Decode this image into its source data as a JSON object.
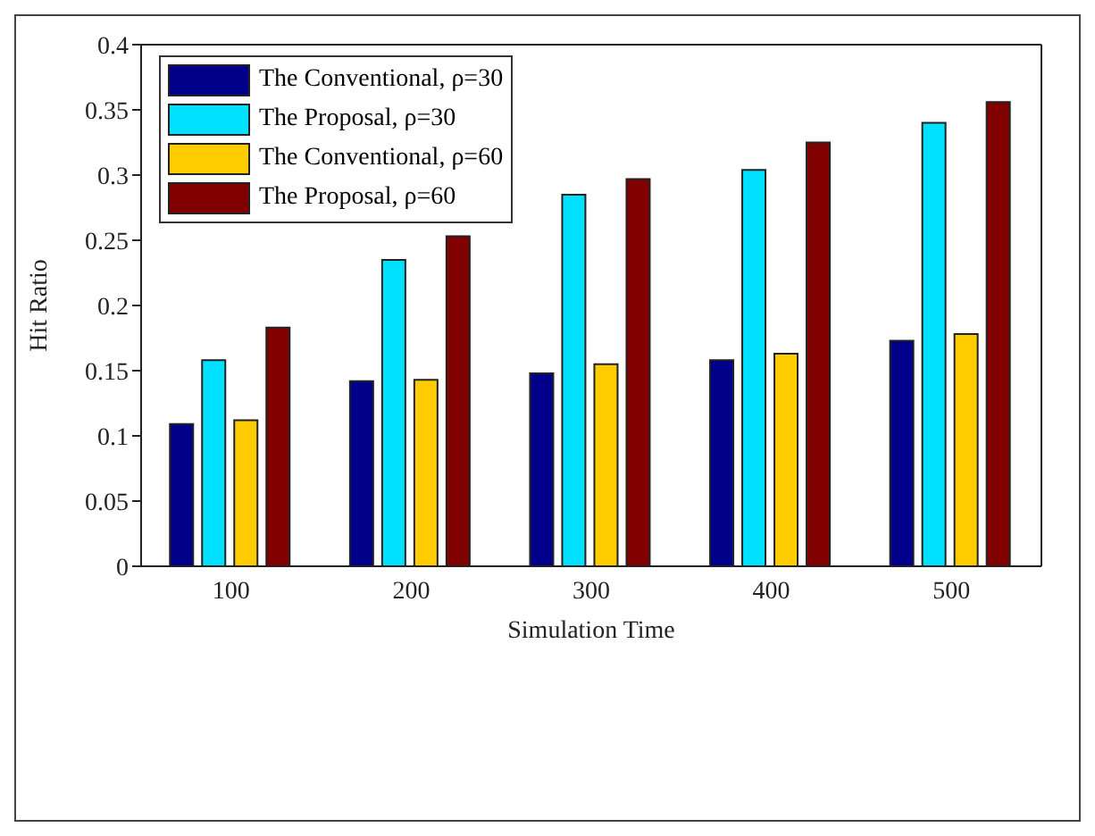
{
  "chart_data": {
    "type": "bar",
    "xlabel": "Simulation Time",
    "ylabel": "Hit Ratio",
    "categories": [
      "100",
      "200",
      "300",
      "400",
      "500"
    ],
    "series": [
      {
        "name": "The Conventional, ρ=30",
        "color": "#00008b",
        "values": [
          0.109,
          0.142,
          0.148,
          0.158,
          0.173
        ]
      },
      {
        "name": "The Proposal, ρ=30",
        "color": "#00e0ff",
        "values": [
          0.158,
          0.235,
          0.285,
          0.304,
          0.34
        ]
      },
      {
        "name": "The Conventional, ρ=60",
        "color": "#ffcc00",
        "values": [
          0.112,
          0.143,
          0.155,
          0.163,
          0.178
        ]
      },
      {
        "name": "The Proposal, ρ=60",
        "color": "#800000",
        "values": [
          0.183,
          0.253,
          0.297,
          0.325,
          0.356
        ]
      }
    ],
    "ylim": [
      0,
      0.4
    ],
    "yticks": [
      0,
      0.05,
      0.1,
      0.15,
      0.2,
      0.25,
      0.3,
      0.35,
      0.4
    ],
    "grid": false,
    "legend": "top left"
  }
}
